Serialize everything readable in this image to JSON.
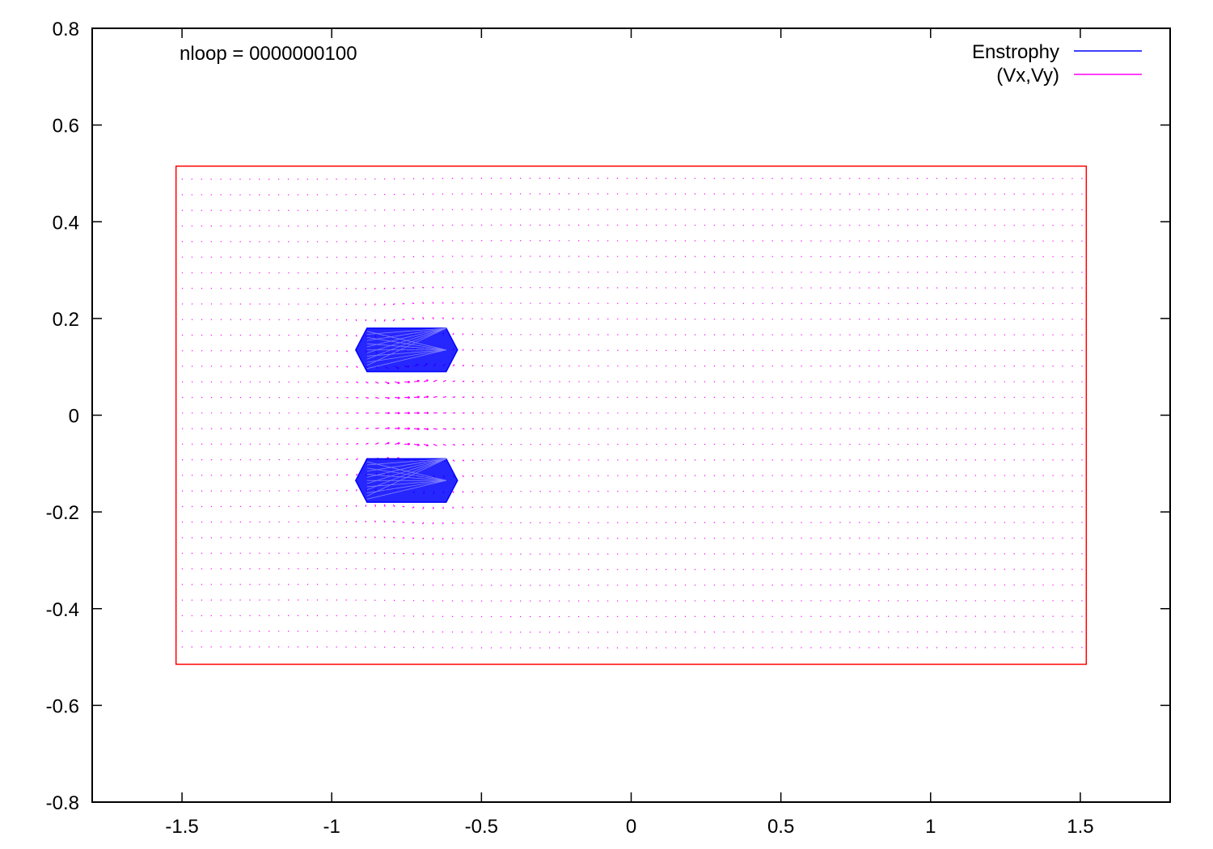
{
  "chart_data": {
    "type": "vector-field",
    "title": "",
    "xlabel": "",
    "ylabel": "",
    "xlim": [
      -1.8,
      1.8
    ],
    "ylim": [
      -0.8,
      0.8
    ],
    "xticks": [
      -1.5,
      -1,
      -0.5,
      0,
      0.5,
      1,
      1.5
    ],
    "xtick_labels": [
      "-1.5",
      "-1",
      "-0.5",
      "0",
      "0.5",
      "1",
      "1.5"
    ],
    "yticks": [
      0.8,
      0.6,
      0.4,
      0.2,
      0,
      -0.2,
      -0.4,
      -0.6,
      -0.8
    ],
    "ytick_labels": [
      "0.8",
      "0.6",
      "0.4",
      "0.2",
      "0",
      "-0.2",
      "-0.4",
      "-0.6",
      "-0.8"
    ],
    "annotation": "nloop = 0000000100",
    "legend_position": "top-right",
    "series": [
      {
        "name": "Enstrophy",
        "color": "#0000ff",
        "style": "filled contour lines",
        "regions": [
          {
            "x": [
              -0.92,
              -0.58
            ],
            "y": [
              0.09,
              0.18
            ]
          },
          {
            "x": [
              -0.92,
              -0.58
            ],
            "y": [
              -0.18,
              -0.09
            ]
          }
        ]
      },
      {
        "name": "(Vx,Vy)",
        "color": "#ff00ff",
        "style": "vector arrows",
        "grid_x": [
          -1.5,
          1.5
        ],
        "grid_y": [
          -0.48,
          0.48
        ],
        "grid_step": 0.0323,
        "vortex_pair": [
          {
            "x": -0.75,
            "y": 0.135,
            "circulation": "counterclockwise"
          },
          {
            "x": -0.75,
            "y": -0.135,
            "circulation": "clockwise"
          }
        ],
        "jet_direction": "+x"
      }
    ],
    "boundary": {
      "color": "#ff0000",
      "x": [
        -1.52,
        1.52
      ],
      "y": [
        -0.515,
        0.515
      ]
    }
  }
}
